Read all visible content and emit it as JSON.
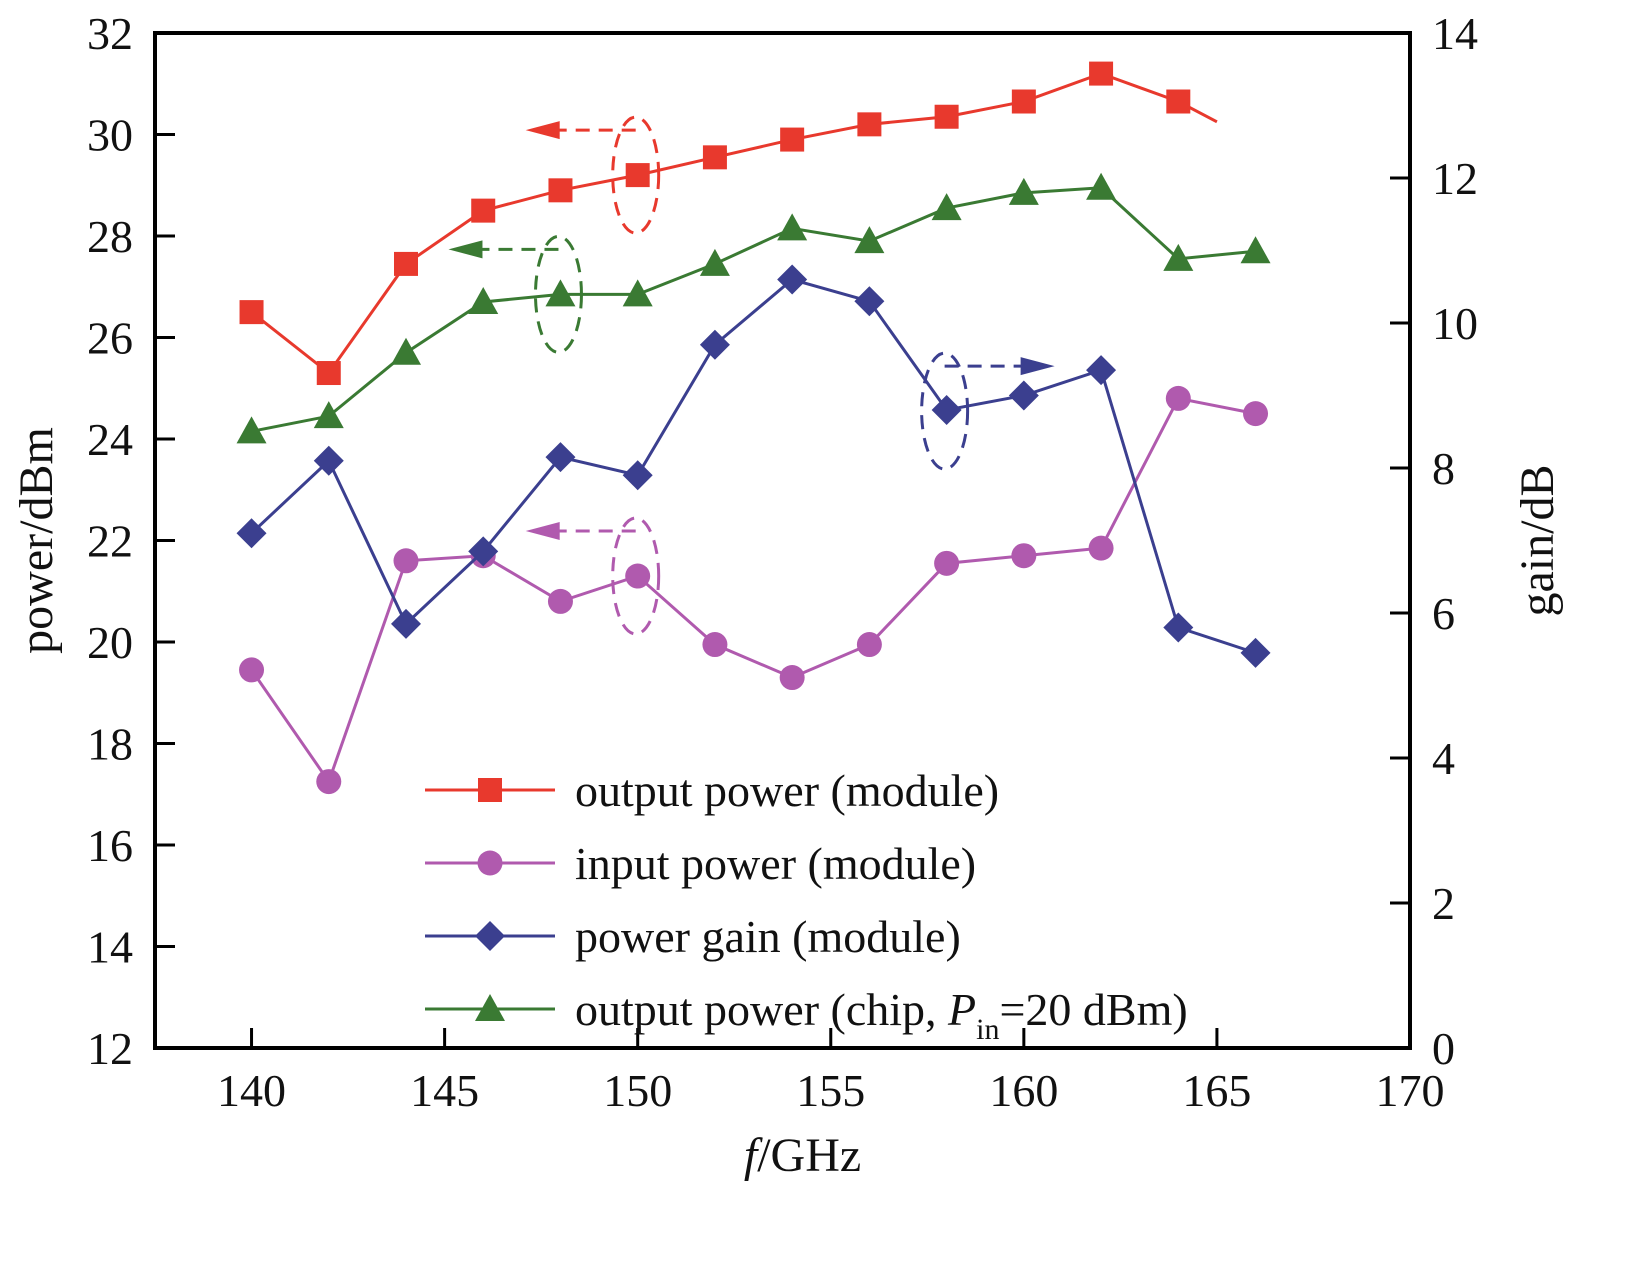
{
  "chart_data": {
    "type": "line",
    "title": "",
    "xlabel_italic": "f",
    "xlabel_rest": "/GHz",
    "ylabel_left": "power/dBm",
    "ylabel_right": "gain/dB",
    "xlim": [
      137.5,
      170
    ],
    "ylim_left": [
      12,
      32
    ],
    "ylim_right": [
      0,
      14
    ],
    "x_ticks": [
      140,
      145,
      150,
      155,
      160,
      165,
      170
    ],
    "y_ticks_left": [
      12,
      14,
      16,
      18,
      20,
      22,
      24,
      26,
      28,
      30,
      32
    ],
    "y_ticks_right": [
      0,
      2,
      4,
      6,
      8,
      10,
      12,
      14
    ],
    "grid": false,
    "legend_position": "bottom-center",
    "series": [
      {
        "name": "output power (module)",
        "axis": "left",
        "color": "#e8392d",
        "marker": "square",
        "x": [
          140,
          142,
          144,
          146,
          148,
          150,
          152,
          154,
          156,
          158,
          160,
          162,
          164
        ],
        "y": [
          26.5,
          25.3,
          27.45,
          28.5,
          28.9,
          29.2,
          29.55,
          29.9,
          30.2,
          30.35,
          30.65,
          31.2,
          30.65
        ],
        "tail": [
          165,
          30.25
        ]
      },
      {
        "name": "input power (module)",
        "axis": "left",
        "color": "#b05aae",
        "marker": "circle",
        "x": [
          140,
          142,
          144,
          146,
          148,
          150,
          152,
          154,
          156,
          158,
          160,
          162,
          164,
          166
        ],
        "y": [
          19.45,
          17.25,
          21.6,
          21.7,
          20.8,
          21.3,
          19.95,
          19.3,
          19.95,
          21.55,
          21.7,
          21.85,
          24.8,
          24.5
        ]
      },
      {
        "name": "power gain (module)",
        "axis": "right",
        "color": "#3b3f8f",
        "marker": "diamond",
        "x": [
          140,
          142,
          144,
          146,
          148,
          150,
          152,
          154,
          156,
          158,
          160,
          162,
          164,
          166
        ],
        "y": [
          7.1,
          8.1,
          5.85,
          6.85,
          8.15,
          7.9,
          9.7,
          10.6,
          10.3,
          8.8,
          9.0,
          9.35,
          5.8,
          5.45
        ]
      },
      {
        "name_main": "output power (chip, ",
        "name_sym": "P",
        "name_sub": "in",
        "name_rest": "=20 dBm)",
        "axis": "left",
        "color": "#3a7a33",
        "marker": "triangle",
        "x": [
          140,
          142,
          144,
          146,
          148,
          150,
          152,
          154,
          156,
          158,
          160,
          162,
          164,
          166
        ],
        "y": [
          24.15,
          24.45,
          25.7,
          26.7,
          26.85,
          26.85,
          27.45,
          28.15,
          27.9,
          28.55,
          28.85,
          28.95,
          27.55,
          27.7
        ]
      }
    ],
    "annotations": [
      {
        "series": 0,
        "x": 150,
        "y_left": 29.2,
        "arrow": "left"
      },
      {
        "series": 3,
        "x": 148,
        "y_left": 26.85,
        "arrow": "left"
      },
      {
        "series": 2,
        "x": 158,
        "y_left": 24.55,
        "arrow": "right"
      },
      {
        "series": 1,
        "x": 150,
        "y_left": 21.3,
        "arrow": "left"
      }
    ]
  }
}
